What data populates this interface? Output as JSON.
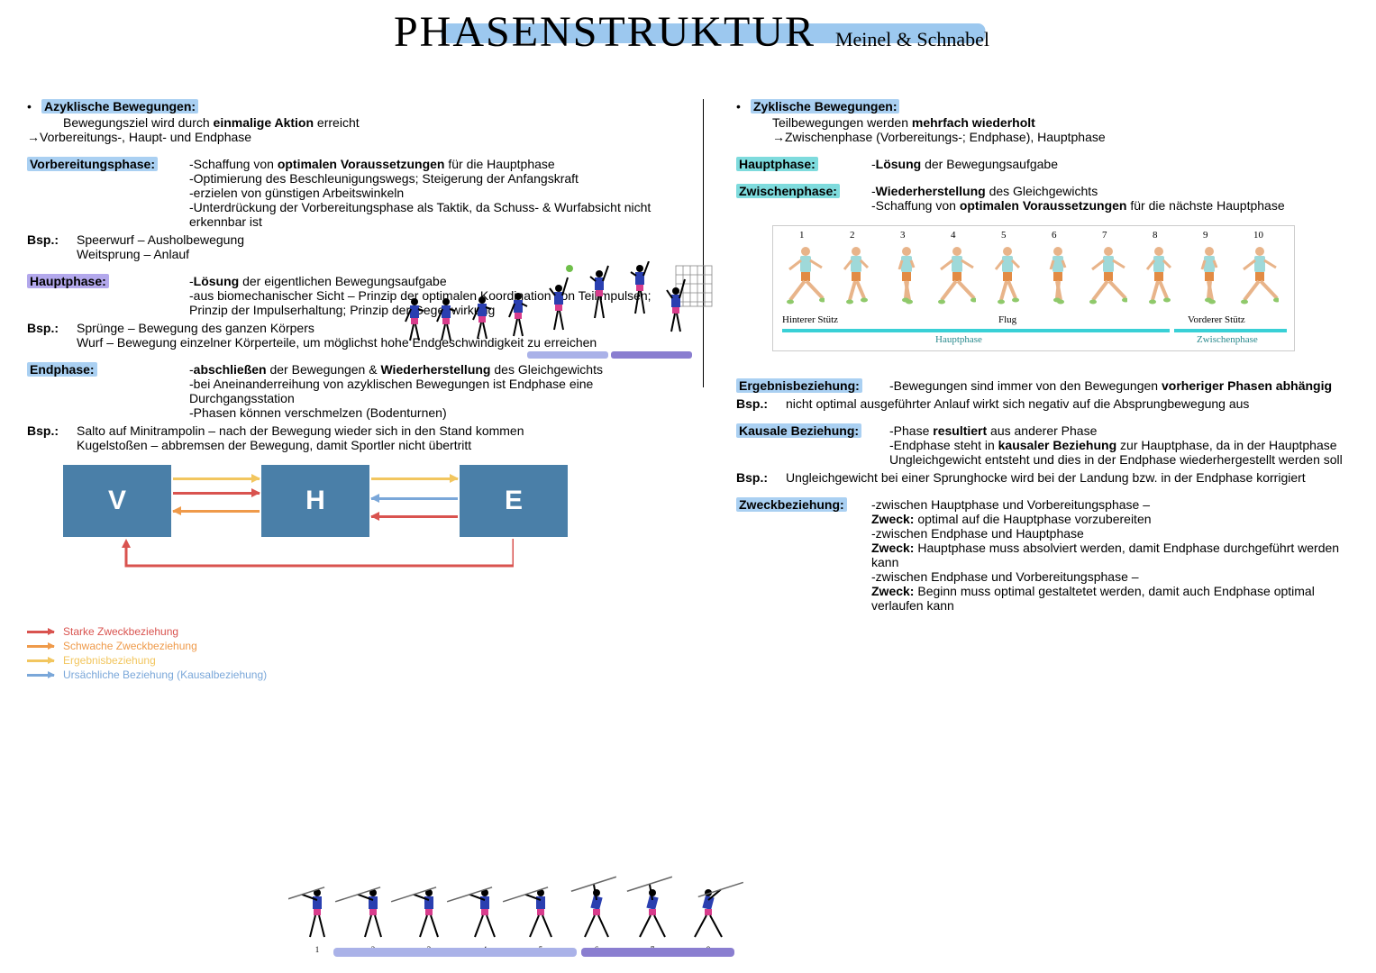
{
  "title": {
    "main": "PHASENSTRUKTUR",
    "sub": "Meinel & Schnabel"
  },
  "colors": {
    "hl_lightblue": "#aad0f2",
    "hl_teal": "#7edbdd",
    "hl_purple": "#b3a8ec",
    "box_blue": "#4a7fa8",
    "arrow_red": "#d9534f",
    "arrow_orange": "#ef9a4a",
    "arrow_yellow": "#f2c65f",
    "arrow_blue": "#7aa7d9",
    "runner_shirt": "#9fd9d9",
    "runner_short": "#e28b44",
    "runner_shoe": "#8fc96b",
    "vball_jersey": "#2a3fb0",
    "vball_short": "#d83c8c",
    "ball_green": "#6fbf4a",
    "run_bar_cyan": "#39d0d6",
    "run_bar_dark": "#39d0d6",
    "jav_bar1": "#aab2e8",
    "jav_bar2": "#8a7ed0"
  },
  "left": {
    "azyk_heading": "Azyklische Bewegungen:",
    "azyk_line1a": "Bewegungsziel wird durch ",
    "azyk_line1b": "einmalige Aktion",
    "azyk_line1c": " erreicht",
    "azyk_line2": "→Vorbereitungs-, Haupt- und Endphase",
    "vorb": {
      "label": "Vorbereitungsphase:",
      "p1a": "-Schaffung von ",
      "p1b": "optimalen Voraussetzungen",
      "p1c": " für die Hauptphase",
      "p2": "-Optimierung des Beschleunigungswegs; Steigerung der Anfangskraft",
      "p3": "-erzielen von günstigen Arbeitswinkeln",
      "p4": "-Unterdrückung der Vorbereitungsphase als Taktik, da Schuss- & Wurfabsicht nicht erkennbar ist",
      "bsp_label": "Bsp.:",
      "bsp1": "Speerwurf – Ausholbewegung",
      "bsp2": "Weitsprung – Anlauf"
    },
    "haupt": {
      "label": "Hauptphase:",
      "p1a": "-",
      "p1b": "Lösung",
      "p1c": " der eigentlichen Bewegungsaufgabe",
      "p2": "-aus biomechanischer Sicht – Prinzip der optimalen Koordination von Teilimpulsen; Prinzip der Impulserhaltung; Prinzip der Gegenwirkung",
      "bsp_label": "Bsp.:",
      "bsp1": "Sprünge – Bewegung des ganzen Körpers",
      "bsp2": "Wurf – Bewegung einzelner Körperteile, um möglichst hohe Endgeschwindigkeit zu erreichen"
    },
    "end": {
      "label": "Endphase:",
      "p1a": "-",
      "p1b": "abschließen",
      "p1c": " der Bewegungen & ",
      "p1d": "Wiederherstellung",
      "p1e": " des Gleichgewichts",
      "p2": "-bei Aneinanderreihung von azyklischen Bewegungen ist Endphase eine Durchgangsstation",
      "p3": "-Phasen können verschmelzen (Bodenturnen)",
      "bsp_label": "Bsp.:",
      "bsp1": "Salto auf Minitrampolin – nach der Bewegung wieder sich in den Stand kommen",
      "bsp2": "Kugelstoßen – abbremsen der Bewegung, damit Sportler nicht übertritt"
    },
    "vhe": {
      "v": "V",
      "h": "H",
      "e": "E"
    },
    "legend": {
      "l1": "Starke Zweckbeziehung",
      "l2": "Schwache Zweckbeziehung",
      "l3": "Ergebnisbeziehung",
      "l4": "Ursächliche Beziehung (Kausalbeziehung)"
    }
  },
  "right": {
    "zyk_heading": "Zyklische Bewegungen:",
    "zyk_l1a": "Teilbewegungen werden ",
    "zyk_l1b": "mehrfach wiederholt",
    "zyk_l2": "→Zwischenphase (Vorbereitungs-; Endphase), Hauptphase",
    "haupt": {
      "label": "Hauptphase:",
      "p1a": "-",
      "p1b": "Lösung",
      "p1c": " der Bewegungsaufgabe"
    },
    "zwischen": {
      "label": "Zwischenphase:",
      "p1a": "-",
      "p1b": "Wiederherstellung",
      "p1c": " des Gleichgewichts",
      "p2a": "-Schaffung von ",
      "p2b": "optimalen Voraussetzungen",
      "p2c": " für die nächste Hauptphase"
    },
    "run_labels": {
      "nums": [
        "1",
        "2",
        "3",
        "4",
        "5",
        "6",
        "7",
        "8",
        "9",
        "10"
      ],
      "hinterer": "Hinterer Stütz",
      "flug": "Flug",
      "vorderer": "Vorderer Stütz",
      "haupt": "Hauptphase",
      "zwischen": "Zwischenphase"
    },
    "ergebnis": {
      "label": "Ergebnisbeziehung:",
      "p1a": "-Bewegungen sind immer von den Bewegungen ",
      "p1b": "vorheriger Phasen abhängig",
      "bsp_label": "Bsp.:",
      "bsp1": "nicht optimal ausgeführter Anlauf wirkt sich negativ auf die Absprungbewegung aus"
    },
    "kausal": {
      "label": "Kausale Beziehung:",
      "p1a": "-Phase ",
      "p1b": "resultiert",
      "p1c": " aus anderer Phase",
      "p2a": "-Endphase steht in ",
      "p2b": "kausaler Beziehung",
      "p2c": " zur Hauptphase, da in der Hauptphase Ungleichgewicht entsteht und dies in der Endphase wiederhergestellt werden soll",
      "bsp_label": "Bsp.:",
      "bsp1": "Ungleichgewicht bei einer Sprunghocke wird bei der Landung bzw. in der Endphase korrigiert"
    },
    "zweck": {
      "label": "Zweckbeziehung:",
      "p1": "-zwischen Hauptphase und Vorbereitungsphase –",
      "p1za": "Zweck:",
      "p1zb": " optimal auf die Hauptphase vorzubereiten",
      "p2": "-zwischen Endphase und Hauptphase",
      "p2za": "Zweck:",
      "p2zb": " Hauptphase muss absolviert werden, damit Endphase durchgeführt werden kann",
      "p3": "-zwischen Endphase und Vorbereitungsphase –",
      "p3za": "Zweck:",
      "p3zb": " Beginn muss optimal gestaltetet werden, damit auch Endphase optimal verlaufen kann"
    }
  }
}
